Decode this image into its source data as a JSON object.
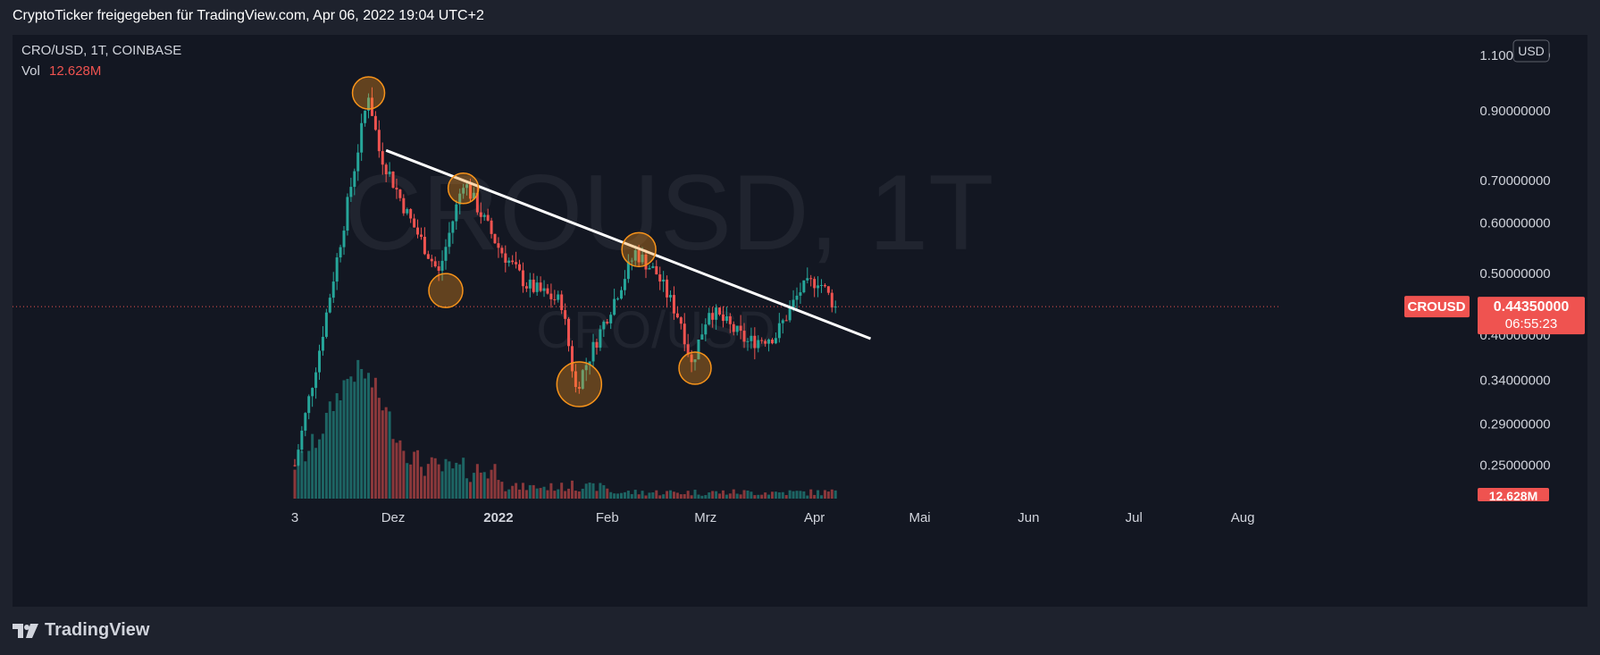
{
  "header": {
    "text": "CryptoTicker freigegeben für TradingView.com, Apr 06, 2022 19:04 UTC+2"
  },
  "legend": {
    "symbol_line": "CRO/USD, 1T, COINBASE",
    "vol_label": "Vol",
    "vol_value": "12.628M"
  },
  "watermark": {
    "big": "CROUSD, 1T",
    "small": "CRO/USD"
  },
  "price_axis": {
    "currency": "USD",
    "labels": [
      {
        "price": 1.1,
        "text": "1.10000000"
      },
      {
        "price": 0.9,
        "text": "0.90000000"
      },
      {
        "price": 0.7,
        "text": "0.70000000"
      },
      {
        "price": 0.6,
        "text": "0.60000000"
      },
      {
        "price": 0.5,
        "text": "0.50000000"
      },
      {
        "price": 0.4,
        "text": "0.40000000"
      },
      {
        "price": 0.34,
        "text": "0.34000000"
      },
      {
        "price": 0.29,
        "text": "0.29000000"
      },
      {
        "price": 0.25,
        "text": "0.25000000"
      }
    ],
    "symbol_tag": "CROUSD",
    "last_price": "0.44350000",
    "countdown": "06:55:23",
    "vol_tag": "12.628M"
  },
  "time_axis": {
    "labels": [
      {
        "day": 0,
        "text": "3",
        "bold": false
      },
      {
        "day": 28,
        "text": "Dez",
        "bold": false
      },
      {
        "day": 58,
        "text": "2022",
        "bold": true
      },
      {
        "day": 89,
        "text": "Feb",
        "bold": false
      },
      {
        "day": 117,
        "text": "Mrz",
        "bold": false
      },
      {
        "day": 148,
        "text": "Apr",
        "bold": false
      },
      {
        "day": 178,
        "text": "Mai",
        "bold": false
      },
      {
        "day": 209,
        "text": "Jun",
        "bold": false
      },
      {
        "day": 239,
        "text": "Jul",
        "bold": false
      },
      {
        "day": 270,
        "text": "Aug",
        "bold": false
      }
    ]
  },
  "footer": {
    "brand": "TradingView"
  },
  "colors": {
    "up": "#26a69a",
    "down": "#ef5350",
    "background": "#131722",
    "circle": "#f7931a"
  },
  "chart_data": {
    "type": "candlestick",
    "symbol": "CRO/USD",
    "interval": "1T",
    "exchange": "COINBASE",
    "scale": "log",
    "x_start": "2021-11-03",
    "ylim": [
      0.22,
      1.15
    ],
    "last_price": 0.4435,
    "volume_last": "12.628M",
    "key_prices": [
      {
        "date": "2021-11-03",
        "price": 0.25
      },
      {
        "date": "2021-11-10",
        "price": 0.38
      },
      {
        "date": "2021-11-17",
        "price": 0.6
      },
      {
        "date": "2021-11-24",
        "price": 0.96
      },
      {
        "date": "2021-11-27",
        "price": 0.78
      },
      {
        "date": "2021-12-05",
        "price": 0.62
      },
      {
        "date": "2021-12-14",
        "price": 0.5
      },
      {
        "date": "2021-12-21",
        "price": 0.7
      },
      {
        "date": "2021-12-31",
        "price": 0.55
      },
      {
        "date": "2022-01-08",
        "price": 0.48
      },
      {
        "date": "2022-01-18",
        "price": 0.45
      },
      {
        "date": "2022-01-22",
        "price": 0.33
      },
      {
        "date": "2022-01-31",
        "price": 0.43
      },
      {
        "date": "2022-02-08",
        "price": 0.54
      },
      {
        "date": "2022-02-14",
        "price": 0.5
      },
      {
        "date": "2022-02-21",
        "price": 0.42
      },
      {
        "date": "2022-02-24",
        "price": 0.36
      },
      {
        "date": "2022-03-01",
        "price": 0.44
      },
      {
        "date": "2022-03-12",
        "price": 0.39
      },
      {
        "date": "2022-03-20",
        "price": 0.4
      },
      {
        "date": "2022-03-27",
        "price": 0.47
      },
      {
        "date": "2022-04-01",
        "price": 0.49
      },
      {
        "date": "2022-04-06",
        "price": 0.4435
      }
    ],
    "trendline": {
      "start": {
        "date": "2021-11-29",
        "price": 0.78
      },
      "end": {
        "date": "2022-04-16",
        "price": 0.395
      }
    },
    "highlight_circles": [
      {
        "date": "2021-11-24",
        "price": 0.96
      },
      {
        "date": "2021-12-21",
        "price": 0.68
      },
      {
        "date": "2021-12-16",
        "price": 0.47
      },
      {
        "date": "2022-01-23",
        "price": 0.335
      },
      {
        "date": "2022-02-09",
        "price": 0.545
      },
      {
        "date": "2022-02-25",
        "price": 0.355
      }
    ]
  }
}
